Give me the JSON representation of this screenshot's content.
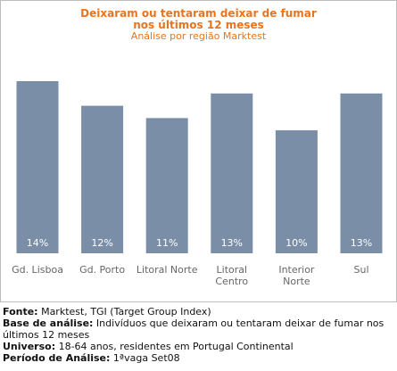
{
  "chart_data": {
    "type": "bar",
    "title": "Deixaram ou tentaram deixar de fumar nos últimos 12 meses",
    "subtitle": "Análise por região Marktest",
    "categories": [
      "Gd. Lisboa",
      "Gd. Porto",
      "Litoral Norte",
      "Litoral Centro",
      "Interior Norte",
      "Sul"
    ],
    "category_lines": [
      [
        "Gd. Lisboa"
      ],
      [
        "Gd. Porto"
      ],
      [
        "Litoral Norte"
      ],
      [
        "Litoral",
        "Centro"
      ],
      [
        "Interior",
        "Norte"
      ],
      [
        "Sul"
      ]
    ],
    "values": [
      14,
      12,
      11,
      13,
      10,
      13
    ],
    "value_labels": [
      "14%",
      "12%",
      "11%",
      "13%",
      "10%",
      "13%"
    ],
    "unit": "%",
    "bar_color": "#7a8ea8",
    "ylim": [
      0,
      14
    ]
  },
  "title_lines": [
    "Deixaram ou tentaram deixar de fumar",
    "nos últimos 12 meses"
  ],
  "notes": {
    "fonte_label": "Fonte:",
    "fonte_text": " Marktest, TGI (Target Group Index)",
    "base_label": "Base de análise:",
    "base_text": " Indivíduos que deixaram ou tentaram deixar de fumar nos últimos 12 meses",
    "universo_label": "Universo:",
    "universo_text": " 18-64 anos, residentes em Portugal Continental",
    "periodo_label": "Período de Análise:",
    "periodo_text": " 1ªvaga Set08"
  },
  "colors": {
    "title": "#e8741e",
    "bar": "#7a8ea8",
    "bar_label": "#ffffff",
    "category_label": "#666666"
  }
}
